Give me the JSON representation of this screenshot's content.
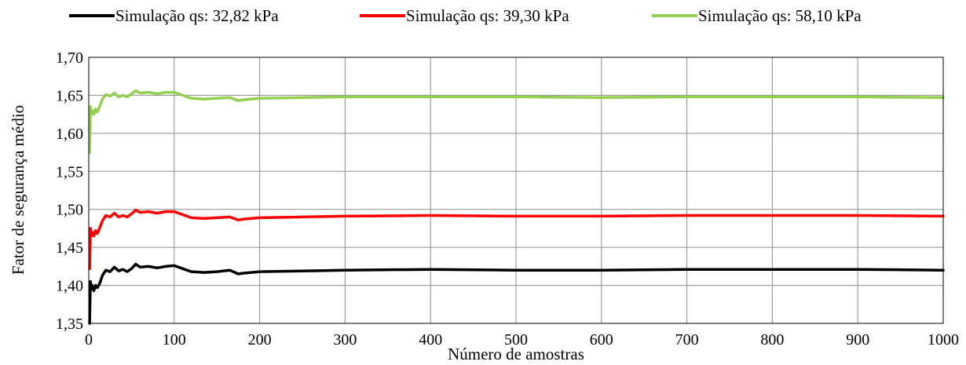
{
  "chart_data": {
    "type": "line",
    "xlabel": "Número de amostras",
    "ylabel": "Fator de segurança médio",
    "xlim": [
      0,
      1000
    ],
    "ylim": [
      1.35,
      1.7
    ],
    "grid": true,
    "legend_position": "top",
    "x_ticks": [
      "0",
      "100",
      "200",
      "300",
      "400",
      "500",
      "600",
      "700",
      "800",
      "900",
      "1000"
    ],
    "y_ticks": [
      "1,35",
      "1,40",
      "1,45",
      "1,50",
      "1,55",
      "1,60",
      "1,65",
      "1,70"
    ],
    "series": [
      {
        "name": "Simulação qs: 32,82 kPa",
        "color": "#000000",
        "x": [
          1,
          2,
          3,
          4,
          6,
          8,
          10,
          13,
          16,
          20,
          25,
          30,
          35,
          40,
          45,
          50,
          55,
          60,
          70,
          80,
          90,
          100,
          110,
          120,
          135,
          150,
          165,
          175,
          180,
          200,
          250,
          300,
          400,
          500,
          600,
          700,
          800,
          900,
          1000
        ],
        "values": [
          1.35,
          1.405,
          1.395,
          1.4,
          1.393,
          1.4,
          1.397,
          1.403,
          1.413,
          1.42,
          1.418,
          1.424,
          1.419,
          1.421,
          1.418,
          1.422,
          1.428,
          1.424,
          1.425,
          1.423,
          1.425,
          1.426,
          1.422,
          1.418,
          1.417,
          1.418,
          1.42,
          1.415,
          1.416,
          1.418,
          1.419,
          1.42,
          1.421,
          1.42,
          1.42,
          1.421,
          1.421,
          1.421,
          1.42
        ]
      },
      {
        "name": "Simulação qs: 39,30 kPa",
        "color": "#ff0000",
        "x": [
          1,
          2,
          3,
          4,
          6,
          8,
          10,
          13,
          16,
          20,
          25,
          30,
          35,
          40,
          45,
          50,
          55,
          60,
          70,
          80,
          90,
          100,
          110,
          120,
          135,
          150,
          165,
          175,
          180,
          200,
          250,
          300,
          400,
          500,
          600,
          700,
          800,
          900,
          1000
        ],
        "values": [
          1.422,
          1.475,
          1.465,
          1.47,
          1.465,
          1.472,
          1.468,
          1.476,
          1.485,
          1.492,
          1.49,
          1.495,
          1.49,
          1.492,
          1.49,
          1.494,
          1.499,
          1.496,
          1.497,
          1.495,
          1.497,
          1.497,
          1.493,
          1.489,
          1.488,
          1.489,
          1.49,
          1.486,
          1.487,
          1.489,
          1.49,
          1.491,
          1.492,
          1.491,
          1.491,
          1.492,
          1.492,
          1.492,
          1.491
        ]
      },
      {
        "name": "Simulação qs: 58,10 kPa",
        "color": "#92d050",
        "x": [
          1,
          2,
          3,
          4,
          6,
          8,
          10,
          13,
          16,
          20,
          25,
          30,
          35,
          40,
          45,
          50,
          55,
          60,
          70,
          80,
          90,
          100,
          110,
          120,
          135,
          150,
          165,
          175,
          180,
          200,
          250,
          300,
          400,
          500,
          600,
          700,
          800,
          900,
          1000
        ],
        "values": [
          1.575,
          1.635,
          1.625,
          1.63,
          1.625,
          1.632,
          1.628,
          1.636,
          1.645,
          1.651,
          1.649,
          1.653,
          1.648,
          1.65,
          1.648,
          1.652,
          1.656,
          1.653,
          1.654,
          1.652,
          1.654,
          1.654,
          1.65,
          1.646,
          1.645,
          1.646,
          1.647,
          1.643,
          1.644,
          1.646,
          1.647,
          1.648,
          1.648,
          1.648,
          1.647,
          1.648,
          1.648,
          1.648,
          1.647
        ]
      }
    ]
  }
}
